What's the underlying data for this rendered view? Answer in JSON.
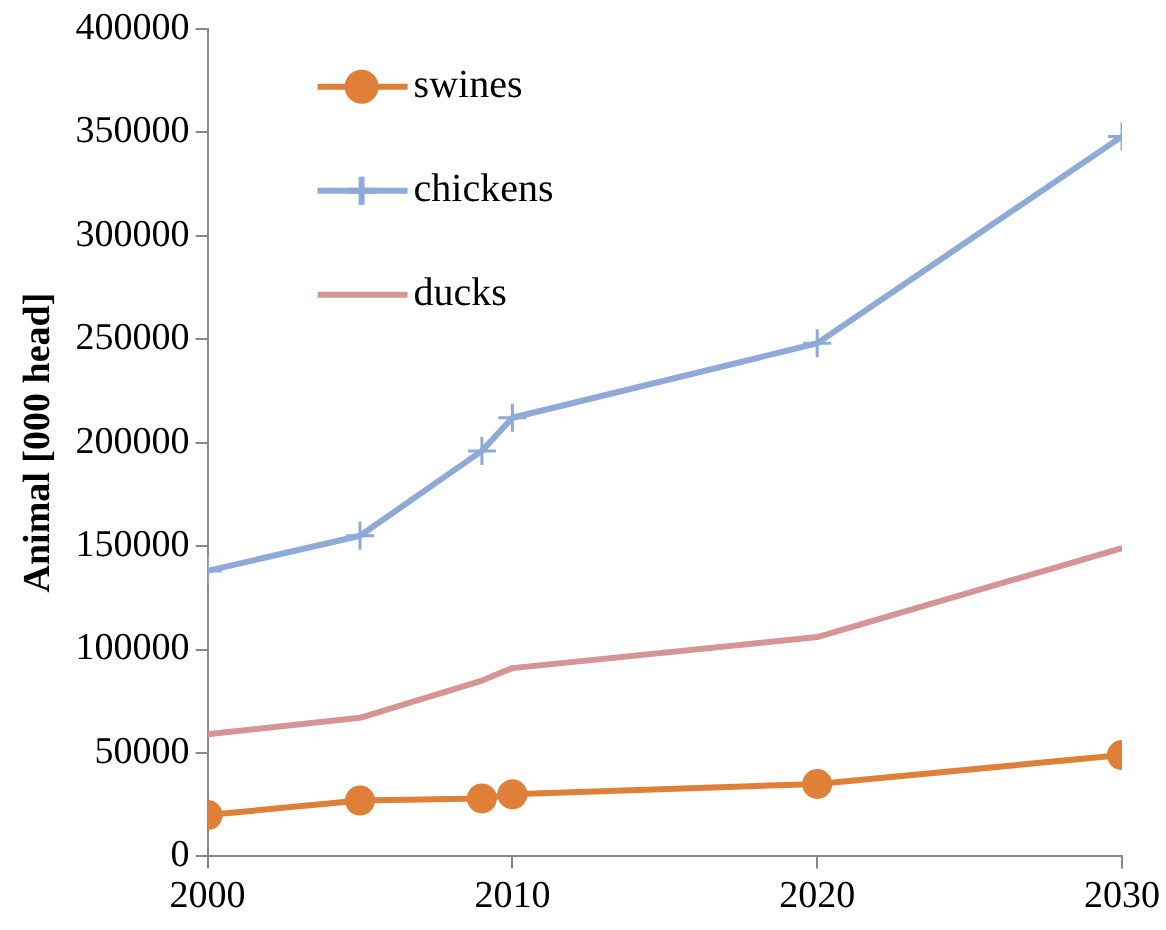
{
  "chart_data": {
    "type": "line",
    "ylabel": "Animal [000 head]",
    "x": [
      2000,
      2005,
      2009,
      2010,
      2020,
      2030
    ],
    "xlim": [
      2000,
      2030
    ],
    "xticks": [
      2000,
      2010,
      2020,
      2030
    ],
    "ylim": [
      0,
      400000
    ],
    "yticks": [
      0,
      50000,
      100000,
      150000,
      200000,
      250000,
      300000,
      350000,
      400000
    ],
    "grid": false,
    "legend": "top left",
    "line_style": "solid",
    "series": [
      {
        "name": "swines",
        "color": "#e07f38",
        "marker": "circle",
        "values": [
          20000,
          27000,
          28000,
          30000,
          35000,
          49000
        ]
      },
      {
        "name": "chickens",
        "color": "#8eaad9",
        "marker": "cross",
        "values": [
          138000,
          155000,
          196000,
          212000,
          248000,
          348000
        ]
      },
      {
        "name": "ducks",
        "color": "#d69594",
        "marker": "none",
        "values": [
          59000,
          67000,
          85000,
          91000,
          106000,
          149000
        ]
      }
    ]
  }
}
